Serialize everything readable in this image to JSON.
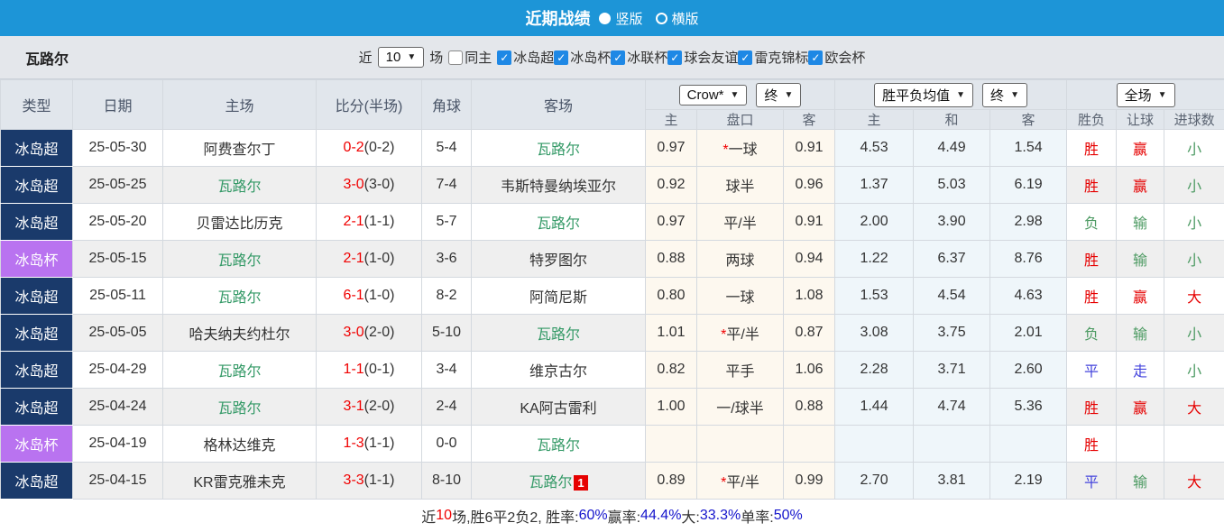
{
  "topbar": {
    "title": "近期战绩",
    "radios": [
      {
        "label": "竖版",
        "selected": true
      },
      {
        "label": "横版",
        "selected": false
      }
    ]
  },
  "filter": {
    "team": "瓦路尔",
    "near_label": "近",
    "count_value": "10",
    "games_label": "场",
    "same_home": {
      "label": "同主",
      "checked": false
    },
    "leagues": [
      {
        "label": "冰岛超",
        "checked": true
      },
      {
        "label": "冰岛杯",
        "checked": true
      },
      {
        "label": "冰联杯",
        "checked": true
      },
      {
        "label": "球会友谊",
        "checked": true
      },
      {
        "label": "雷克锦标",
        "checked": true
      },
      {
        "label": "欧会杯",
        "checked": true
      }
    ]
  },
  "table": {
    "main_headers": [
      "类型",
      "日期",
      "主场",
      "比分(半场)",
      "角球",
      "客场"
    ],
    "dropdowns": {
      "company": "Crow*",
      "final1": "终",
      "avg": "胜平负均值",
      "final2": "终",
      "scope": "全场"
    },
    "sub_headers": [
      "主",
      "盘口",
      "客",
      "主",
      "和",
      "客",
      "胜负",
      "让球",
      "进球数"
    ],
    "rows": [
      {
        "league": "冰岛超",
        "league_type": "super",
        "date": "25-05-30",
        "home": "阿费查尔丁",
        "home_self": false,
        "ft": "0-2",
        "ht": "(0-2)",
        "corner": "5-4",
        "away": "瓦路尔",
        "away_self": true,
        "away_badge": "",
        "h_home": "0.97",
        "handicap": "*一球",
        "h_away": "0.91",
        "e_home": "4.53",
        "e_draw": "4.49",
        "e_away": "1.54",
        "res": "胜",
        "res_c": "red",
        "let": "赢",
        "let_c": "red",
        "goal": "小",
        "goal_c": "green"
      },
      {
        "league": "冰岛超",
        "league_type": "super",
        "date": "25-05-25",
        "home": "瓦路尔",
        "home_self": true,
        "ft": "3-0",
        "ht": "(3-0)",
        "corner": "7-4",
        "away": "韦斯特曼纳埃亚尔",
        "away_self": false,
        "away_badge": "",
        "h_home": "0.92",
        "handicap": "球半",
        "h_away": "0.96",
        "e_home": "1.37",
        "e_draw": "5.03",
        "e_away": "6.19",
        "res": "胜",
        "res_c": "red",
        "let": "赢",
        "let_c": "red",
        "goal": "小",
        "goal_c": "green"
      },
      {
        "league": "冰岛超",
        "league_type": "super",
        "date": "25-05-20",
        "home": "贝雷达比历克",
        "home_self": false,
        "ft": "2-1",
        "ht": "(1-1)",
        "corner": "5-7",
        "away": "瓦路尔",
        "away_self": true,
        "away_badge": "",
        "h_home": "0.97",
        "handicap": "平/半",
        "h_away": "0.91",
        "e_home": "2.00",
        "e_draw": "3.90",
        "e_away": "2.98",
        "res": "负",
        "res_c": "green",
        "let": "输",
        "let_c": "green",
        "goal": "小",
        "goal_c": "green"
      },
      {
        "league": "冰岛杯",
        "league_type": "cup",
        "date": "25-05-15",
        "home": "瓦路尔",
        "home_self": true,
        "ft": "2-1",
        "ht": "(1-0)",
        "corner": "3-6",
        "away": "特罗图尔",
        "away_self": false,
        "away_badge": "",
        "h_home": "0.88",
        "handicap": "两球",
        "h_away": "0.94",
        "e_home": "1.22",
        "e_draw": "6.37",
        "e_away": "8.76",
        "res": "胜",
        "res_c": "red",
        "let": "输",
        "let_c": "green",
        "goal": "小",
        "goal_c": "green"
      },
      {
        "league": "冰岛超",
        "league_type": "super",
        "date": "25-05-11",
        "home": "瓦路尔",
        "home_self": true,
        "ft": "6-1",
        "ht": "(1-0)",
        "corner": "8-2",
        "away": "阿简尼斯",
        "away_self": false,
        "away_badge": "",
        "h_home": "0.80",
        "handicap": "一球",
        "h_away": "1.08",
        "e_home": "1.53",
        "e_draw": "4.54",
        "e_away": "4.63",
        "res": "胜",
        "res_c": "red",
        "let": "赢",
        "let_c": "red",
        "goal": "大",
        "goal_c": "red"
      },
      {
        "league": "冰岛超",
        "league_type": "super",
        "date": "25-05-05",
        "home": "哈夫纳夫约杜尔",
        "home_self": false,
        "ft": "3-0",
        "ht": "(2-0)",
        "corner": "5-10",
        "away": "瓦路尔",
        "away_self": true,
        "away_badge": "",
        "h_home": "1.01",
        "handicap": "*平/半",
        "h_away": "0.87",
        "e_home": "3.08",
        "e_draw": "3.75",
        "e_away": "2.01",
        "res": "负",
        "res_c": "green",
        "let": "输",
        "let_c": "green",
        "goal": "小",
        "goal_c": "green"
      },
      {
        "league": "冰岛超",
        "league_type": "super",
        "date": "25-04-29",
        "home": "瓦路尔",
        "home_self": true,
        "ft": "1-1",
        "ht": "(0-1)",
        "corner": "3-4",
        "away": "维京古尔",
        "away_self": false,
        "away_badge": "",
        "h_home": "0.82",
        "handicap": "平手",
        "h_away": "1.06",
        "e_home": "2.28",
        "e_draw": "3.71",
        "e_away": "2.60",
        "res": "平",
        "res_c": "blue",
        "let": "走",
        "let_c": "blue",
        "goal": "小",
        "goal_c": "green"
      },
      {
        "league": "冰岛超",
        "league_type": "super",
        "date": "25-04-24",
        "home": "瓦路尔",
        "home_self": true,
        "ft": "3-1",
        "ht": "(2-0)",
        "corner": "2-4",
        "away": "KA阿古雷利",
        "away_self": false,
        "away_badge": "",
        "h_home": "1.00",
        "handicap": "一/球半",
        "h_away": "0.88",
        "e_home": "1.44",
        "e_draw": "4.74",
        "e_away": "5.36",
        "res": "胜",
        "res_c": "red",
        "let": "赢",
        "let_c": "red",
        "goal": "大",
        "goal_c": "red"
      },
      {
        "league": "冰岛杯",
        "league_type": "cup",
        "date": "25-04-19",
        "home": "格林达维克",
        "home_self": false,
        "ft": "1-3",
        "ht": "(1-1)",
        "corner": "0-0",
        "away": "瓦路尔",
        "away_self": true,
        "away_badge": "",
        "h_home": "",
        "handicap": "",
        "h_away": "",
        "e_home": "",
        "e_draw": "",
        "e_away": "",
        "res": "胜",
        "res_c": "red",
        "let": "",
        "let_c": "red",
        "goal": "",
        "goal_c": "green"
      },
      {
        "league": "冰岛超",
        "league_type": "super",
        "date": "25-04-15",
        "home": "KR雷克雅未克",
        "home_self": false,
        "ft": "3-3",
        "ht": "(1-1)",
        "corner": "8-10",
        "away": "瓦路尔",
        "away_self": true,
        "away_badge": "1",
        "h_home": "0.89",
        "handicap": "*平/半",
        "h_away": "0.99",
        "e_home": "2.70",
        "e_draw": "3.81",
        "e_away": "2.19",
        "res": "平",
        "res_c": "blue",
        "let": "输",
        "let_c": "green",
        "goal": "大",
        "goal_c": "red"
      }
    ]
  },
  "footer": {
    "segments": [
      {
        "text": "近",
        "color": "dark"
      },
      {
        "text": "10",
        "color": "red"
      },
      {
        "text": "场,胜6平2负2, 胜率:",
        "color": "dark"
      },
      {
        "text": "60%",
        "color": "blue"
      },
      {
        "text": " 赢率:",
        "color": "dark"
      },
      {
        "text": "44.4%",
        "color": "blue"
      },
      {
        "text": " 大:",
        "color": "dark"
      },
      {
        "text": "33.3%",
        "color": "blue"
      },
      {
        "text": " 单率:",
        "color": "dark"
      },
      {
        "text": "50%",
        "color": "blue"
      }
    ]
  }
}
